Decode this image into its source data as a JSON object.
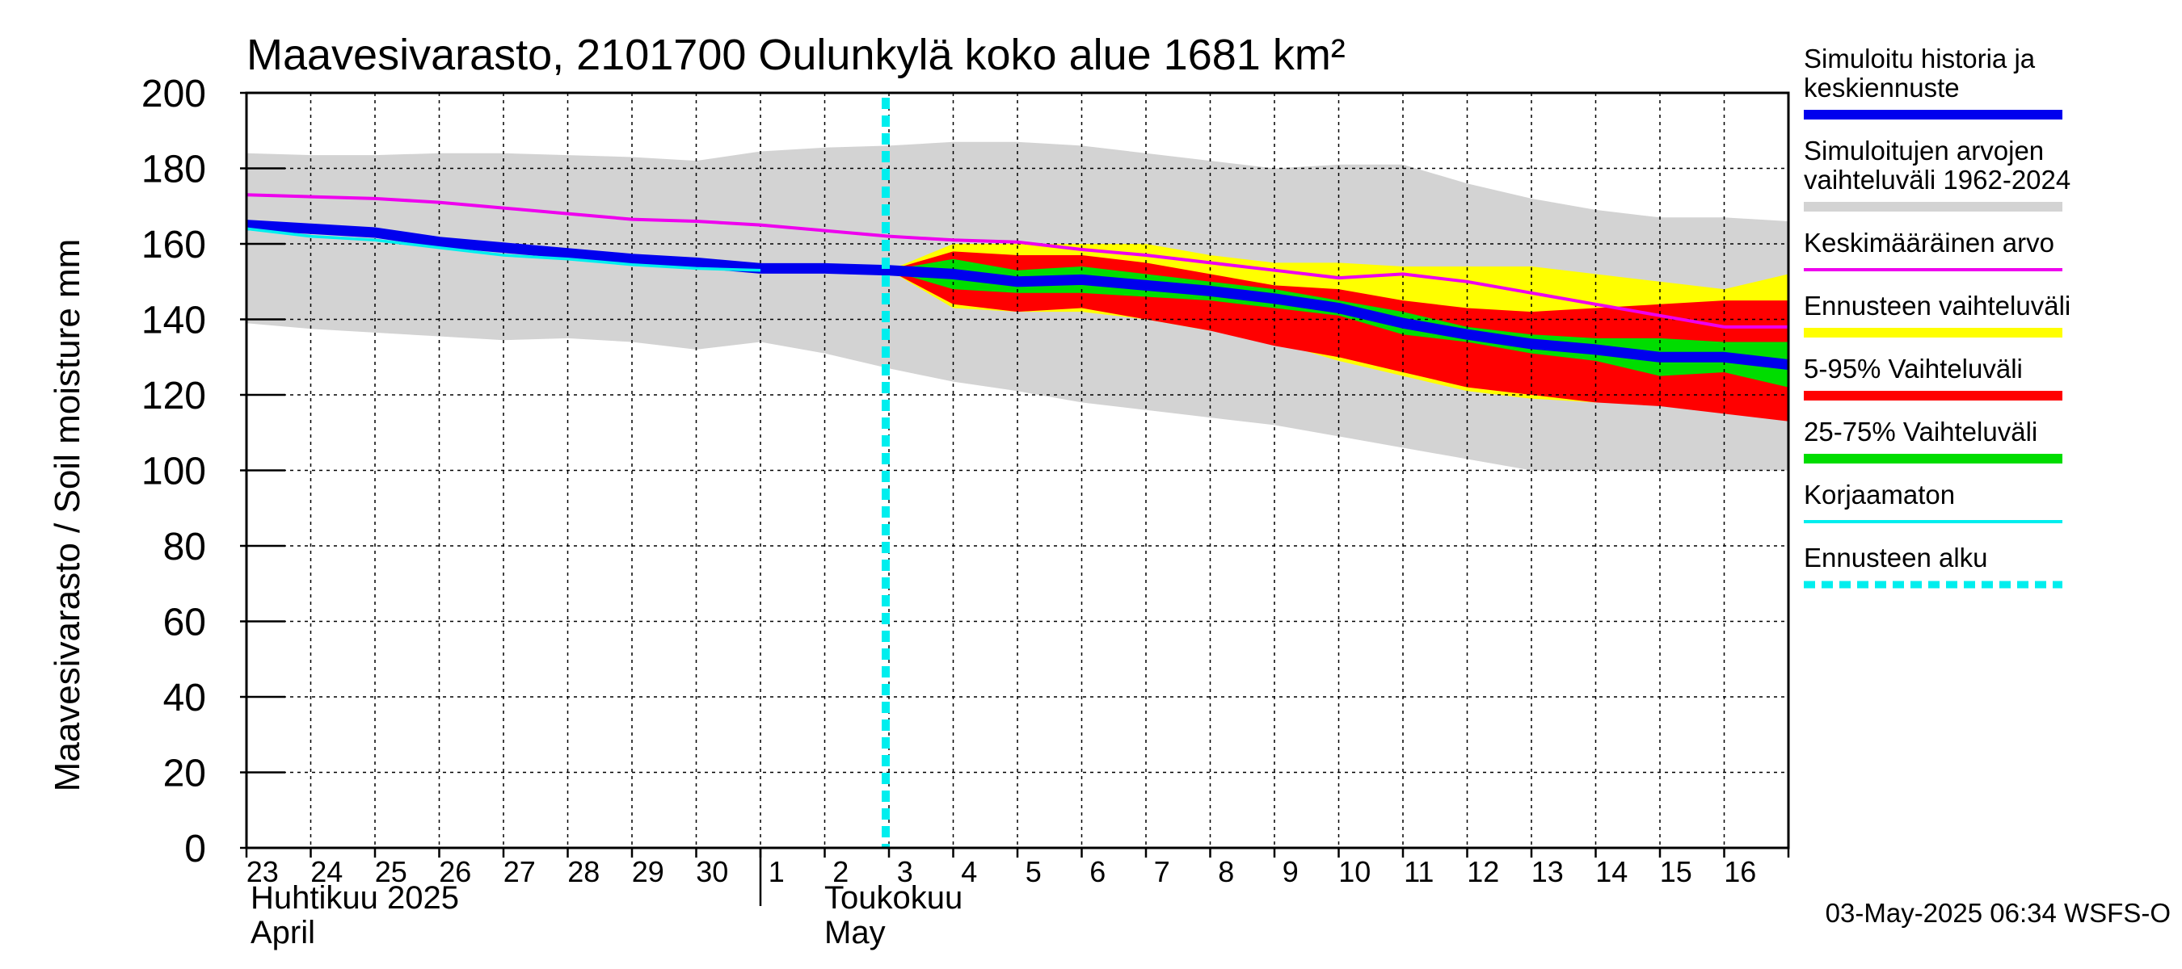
{
  "chart_data": {
    "type": "area",
    "title": "Maavesivarasto, 2101700 Oulunkylä koko alue 1681 km²",
    "ylabel": "Maavesivarasto / Soil moisture   mm",
    "ylim": [
      0,
      200
    ],
    "yticks": [
      0,
      20,
      40,
      60,
      80,
      100,
      120,
      140,
      160,
      180,
      200
    ],
    "xlim": [
      0,
      24
    ],
    "day_labels": [
      "23",
      "24",
      "25",
      "26",
      "27",
      "28",
      "29",
      "30",
      "1",
      "2",
      "3",
      "4",
      "5",
      "6",
      "7",
      "8",
      "9",
      "10",
      "11",
      "12",
      "13",
      "14",
      "15",
      "16"
    ],
    "month_separator_day": 8,
    "month_labels": {
      "april": [
        "Huhtikuu  2025",
        "April"
      ],
      "may": [
        "Toukokuu",
        "May"
      ]
    },
    "forecast_start_day": 10,
    "footer": "03-May-2025 06:34 WSFS-O",
    "colors": {
      "history": "#0000ee",
      "range": "#d3d3d3",
      "mean": "#ee00ee",
      "forecast_range": "#ffff00",
      "p5_95": "#ff0000",
      "p25_75": "#00dd00",
      "uncorrected": "#00eeee",
      "forecast_start": "#00eeee"
    },
    "legend": [
      {
        "label": "Simuloitu historia ja keskiennuste",
        "lines": [
          "Simuloitu historia ja",
          "keskiennuste"
        ],
        "color": "#0000ee",
        "style": "solid"
      },
      {
        "label": "Simuloitujen arvojen vaihteluväli 1962-2024",
        "lines": [
          "Simuloitujen arvojen",
          "vaihteluväli 1962-2024"
        ],
        "color": "#d3d3d3",
        "style": "solid"
      },
      {
        "label": "Keskimääräinen arvo",
        "lines": [
          "Keskimääräinen arvo"
        ],
        "color": "#ee00ee",
        "style": "thin"
      },
      {
        "label": "Ennusteen vaihteluväli",
        "lines": [
          "Ennusteen vaihteluväli"
        ],
        "color": "#ffff00",
        "style": "solid"
      },
      {
        "label": "5-95% Vaihteluväli",
        "lines": [
          "5-95% Vaihteluväli"
        ],
        "color": "#ff0000",
        "style": "solid"
      },
      {
        "label": "25-75% Vaihteluväli",
        "lines": [
          "25-75% Vaihteluväli"
        ],
        "color": "#00dd00",
        "style": "solid"
      },
      {
        "label": "Korjaamaton",
        "lines": [
          "Korjaamaton"
        ],
        "color": "#00eeee",
        "style": "thin"
      },
      {
        "label": "Ennusteen alku",
        "lines": [
          "Ennusteen alku"
        ],
        "color": "#00eeee",
        "style": "dashed"
      }
    ],
    "series": [
      {
        "name": "Simuloitujen arvojen vaihteluväli 1962-2024",
        "x": [
          0,
          1,
          2,
          3,
          4,
          5,
          6,
          7,
          8,
          9,
          10,
          11,
          12,
          13,
          14,
          15,
          16,
          17,
          18,
          19,
          20,
          21,
          22,
          23,
          24
        ],
        "upper": [
          184,
          183.5,
          183.5,
          184,
          184,
          183.5,
          183,
          182,
          184.5,
          185.5,
          186,
          187,
          187,
          186,
          184,
          182,
          180,
          181,
          181,
          176,
          172,
          169,
          167,
          167,
          166
        ],
        "lower": [
          139,
          137.5,
          136.5,
          135.5,
          134.5,
          135,
          134,
          132,
          134,
          131,
          127,
          123.5,
          121,
          118,
          116,
          114,
          112,
          109,
          106,
          103,
          100,
          100,
          100,
          100,
          100
        ]
      },
      {
        "name": "Keskimääräinen arvo",
        "x": [
          0,
          1,
          2,
          3,
          4,
          5,
          6,
          7,
          8,
          9,
          10,
          11,
          12,
          13,
          14,
          15,
          16,
          17,
          18,
          19,
          20,
          21,
          22,
          23,
          24
        ],
        "values": [
          173,
          172.5,
          172,
          171,
          169.5,
          168,
          166.5,
          166,
          165,
          163.5,
          162,
          161,
          160.5,
          158.5,
          157,
          155,
          153,
          151,
          152,
          150,
          147,
          144,
          141,
          138,
          138
        ]
      },
      {
        "name": "Ennusteen vaihteluväli",
        "x": [
          10,
          11,
          12,
          13,
          14,
          15,
          16,
          17,
          18,
          19,
          20,
          21,
          22,
          23,
          24
        ],
        "upper": [
          153,
          160,
          160,
          160,
          160,
          157,
          155,
          155,
          154,
          154,
          154,
          152,
          150,
          148,
          152
        ],
        "lower": [
          153,
          143,
          142,
          142,
          140,
          137,
          134,
          129,
          125,
          121,
          119,
          118,
          118,
          118,
          118
        ]
      },
      {
        "name": "5-95% Vaihteluväli",
        "x": [
          10,
          11,
          12,
          13,
          14,
          15,
          16,
          17,
          18,
          19,
          20,
          21,
          22,
          23,
          24
        ],
        "upper": [
          153,
          158,
          157,
          157,
          155,
          152,
          149,
          148,
          145,
          143,
          142,
          143,
          144,
          145,
          145
        ],
        "lower": [
          153,
          144,
          142,
          143,
          140,
          137,
          133,
          130,
          126,
          122,
          120,
          118,
          117,
          115,
          113
        ]
      },
      {
        "name": "25-75% Vaihteluväli",
        "x": [
          10,
          11,
          12,
          13,
          14,
          15,
          16,
          17,
          18,
          19,
          20,
          21,
          22,
          23,
          24
        ],
        "upper": [
          153,
          156,
          153,
          154,
          152,
          150,
          148,
          145,
          142,
          138,
          136,
          135,
          135,
          134,
          134
        ]
      },
      {
        "name": "Simuloitu historia ja keskiennuste",
        "x": [
          0,
          1,
          2,
          3,
          4,
          5,
          6,
          7,
          8,
          9,
          10,
          11,
          12,
          13,
          14,
          15,
          16,
          17,
          18,
          19,
          20,
          21,
          22,
          23,
          24
        ],
        "values": [
          165,
          164,
          163,
          160.5,
          159,
          157.5,
          156,
          155,
          153.5,
          153.5,
          153,
          152,
          150,
          150.5,
          149,
          147.5,
          145.5,
          143,
          139,
          136,
          133.5,
          132,
          130,
          130,
          128
        ]
      },
      {
        "name": "Korjaamaton",
        "x": [
          0,
          1,
          2,
          3,
          4,
          5,
          6,
          7,
          8
        ],
        "values": [
          164,
          162,
          161,
          159,
          157,
          156,
          154.5,
          153.5,
          153
        ]
      }
    ]
  }
}
